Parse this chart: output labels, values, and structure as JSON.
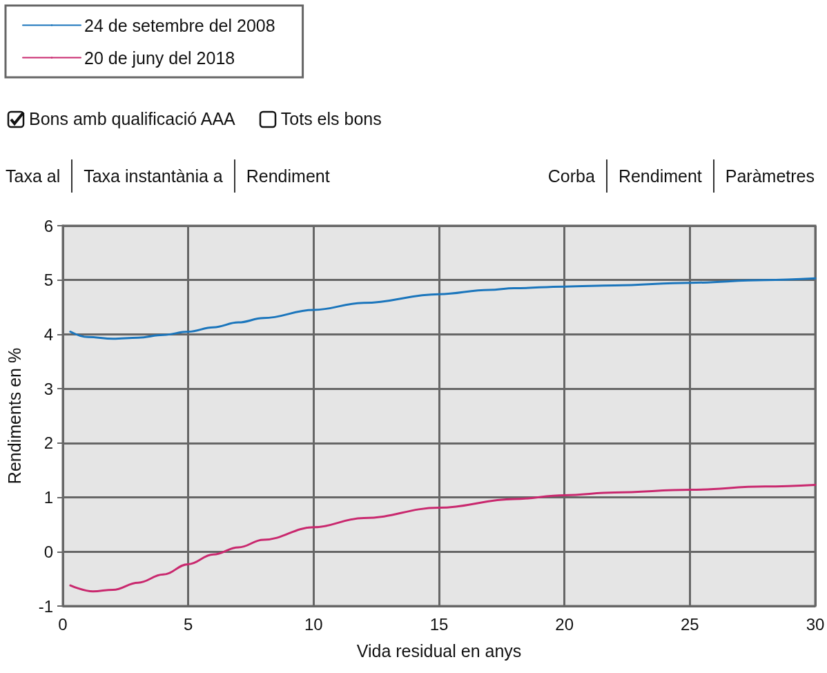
{
  "chart_data": {
    "type": "line",
    "xlabel": "Vida residual en anys",
    "ylabel": "Rendiments en %",
    "annotations": [
      "Bons amb qualificació AAA",
      "Tots els bons",
      "Taxa al",
      "Taxa instantània a",
      "Rendiment",
      "Corba",
      "Rendiment",
      "Paràmetres"
    ],
    "series": [
      {
        "name": "24 de setembre del 2008",
        "color": "#1a75bc",
        "x": [
          0.3,
          1,
          2,
          3,
          4,
          5,
          6,
          7,
          8,
          10,
          12,
          15,
          17,
          18,
          20,
          22,
          25,
          28,
          30
        ],
        "values": [
          4.05,
          3.95,
          3.92,
          3.94,
          3.99,
          4.05,
          4.13,
          4.22,
          4.3,
          4.45,
          4.58,
          4.74,
          4.82,
          4.85,
          4.88,
          4.9,
          4.95,
          5.0,
          5.03
        ]
      },
      {
        "name": "20 de juny del 2018",
        "color": "#c9286e",
        "x": [
          0.3,
          1.2,
          2,
          3,
          4,
          5,
          6,
          7,
          8,
          10,
          12,
          15,
          18,
          20,
          22,
          25,
          28,
          30
        ],
        "values": [
          -0.62,
          -0.73,
          -0.7,
          -0.57,
          -0.42,
          -0.23,
          -0.05,
          0.08,
          0.22,
          0.45,
          0.62,
          0.81,
          0.97,
          1.04,
          1.09,
          1.14,
          1.2,
          1.23
        ]
      }
    ],
    "xlim": [
      0,
      30
    ],
    "xticks": [
      0,
      5,
      10,
      15,
      20,
      25,
      30
    ],
    "ylim": [
      -1,
      6
    ],
    "yticks": [
      -1,
      0,
      1,
      2,
      3,
      4,
      5,
      6
    ],
    "grid": true,
    "legend": "top left",
    "marker": "none",
    "line_style": "solid"
  }
}
